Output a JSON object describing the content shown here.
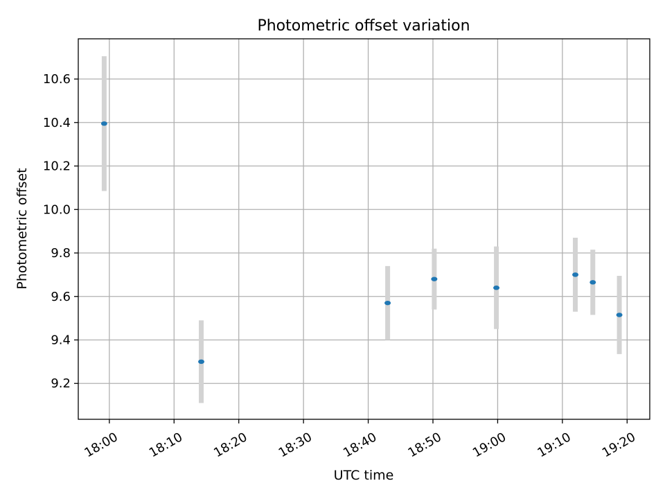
{
  "chart_data": {
    "type": "scatter",
    "title": "Photometric offset variation",
    "xlabel": "UTC time",
    "ylabel": "Photometric offset",
    "xlim_minutes": [
      -4.8,
      83.5
    ],
    "ylim": [
      9.035,
      10.785
    ],
    "grid": true,
    "x_ticks": [
      {
        "minute": 0,
        "label": "18:00"
      },
      {
        "minute": 10,
        "label": "18:10"
      },
      {
        "minute": 20,
        "label": "18:20"
      },
      {
        "minute": 30,
        "label": "18:30"
      },
      {
        "minute": 40,
        "label": "18:40"
      },
      {
        "minute": 50,
        "label": "18:50"
      },
      {
        "minute": 60,
        "label": "19:00"
      },
      {
        "minute": 70,
        "label": "19:10"
      },
      {
        "minute": 80,
        "label": "19:20"
      }
    ],
    "y_ticks": [
      {
        "value": 9.2,
        "label": "9.2"
      },
      {
        "value": 9.4,
        "label": "9.4"
      },
      {
        "value": 9.6,
        "label": "9.6"
      },
      {
        "value": 9.8,
        "label": "9.8"
      },
      {
        "value": 10.0,
        "label": "10.0"
      },
      {
        "value": 10.2,
        "label": "10.2"
      },
      {
        "value": 10.4,
        "label": "10.4"
      },
      {
        "value": 10.6,
        "label": "10.6"
      }
    ],
    "series": [
      {
        "name": "Photometric offset",
        "marker_color": "#1f77b4",
        "error_color": "#d3d3d3",
        "points": [
          {
            "minute": -0.8,
            "time": "17:59",
            "y": 10.395,
            "yerr": 0.31
          },
          {
            "minute": 14.2,
            "time": "18:14",
            "y": 9.3,
            "yerr": 0.19
          },
          {
            "minute": 43.0,
            "time": "18:43",
            "y": 9.57,
            "yerr": 0.17
          },
          {
            "minute": 50.2,
            "time": "18:50",
            "y": 9.68,
            "yerr": 0.14
          },
          {
            "minute": 59.8,
            "time": "18:59",
            "y": 9.64,
            "yerr": 0.19
          },
          {
            "minute": 72.0,
            "time": "19:12",
            "y": 9.7,
            "yerr": 0.17
          },
          {
            "minute": 74.7,
            "time": "19:14",
            "y": 9.665,
            "yerr": 0.15
          },
          {
            "minute": 78.8,
            "time": "19:18",
            "y": 9.515,
            "yerr": 0.18
          }
        ]
      }
    ]
  }
}
